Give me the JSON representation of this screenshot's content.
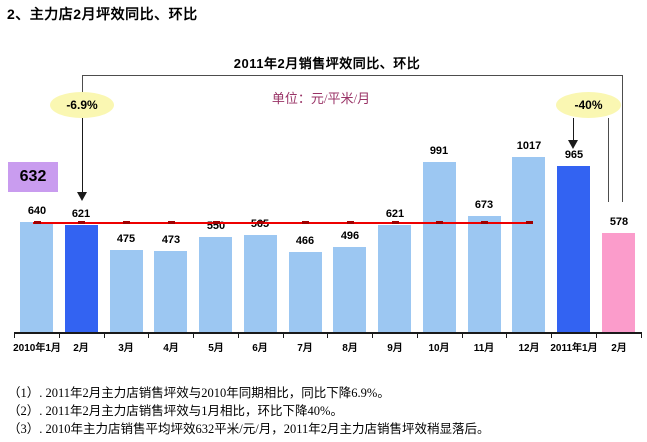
{
  "page": {
    "heading": "2、主力店2月坪效同比、环比",
    "footnotes": [
      "（1）. 2011年2月主力店销售坪效与2010年同期相比，同比下降6.9%。",
      "（2）. 2011年2月主力店销售坪效与1月相比，环比下降40%。",
      "（3）. 2010年主力店销售平均坪效632平米/元/月，2011年2月主力店销售坪效稍显落后。"
    ]
  },
  "chart_data": {
    "type": "bar",
    "title": "2011年2月销售坪效同比、环比",
    "unit_label": "单位：元/平米/月",
    "categories": [
      "2010年1月",
      "2月",
      "3月",
      "4月",
      "5月",
      "6月",
      "7月",
      "8月",
      "9月",
      "10月",
      "11月",
      "12月",
      "2011年1月",
      "2月"
    ],
    "values": [
      640,
      621,
      475,
      473,
      550,
      565,
      466,
      496,
      621,
      991,
      673,
      1017,
      965,
      578
    ],
    "bar_color_keys": [
      "light",
      "dark",
      "light",
      "light",
      "light",
      "light",
      "light",
      "light",
      "light",
      "light",
      "light",
      "light",
      "dark",
      "pink"
    ],
    "ylim": [
      0,
      1100
    ],
    "grid": false,
    "legend": false,
    "average_line": {
      "value": 632,
      "label": "632",
      "span_categories": [
        0,
        11
      ],
      "marker": "dash"
    },
    "annotations": [
      {
        "label": "-6.9%",
        "target_category": 1,
        "meaning": "同比"
      },
      {
        "label": "-40%",
        "target_category": 12,
        "meaning": "环比"
      }
    ],
    "colors": {
      "light": "#9CC7F2",
      "dark": "#3363F2",
      "pink": "#FB9CCB",
      "average_line": "#EE0000",
      "average_marker": "#A00000",
      "annotation_fill": "#FAF7B2",
      "average_box_fill": "#C99CEF"
    }
  }
}
